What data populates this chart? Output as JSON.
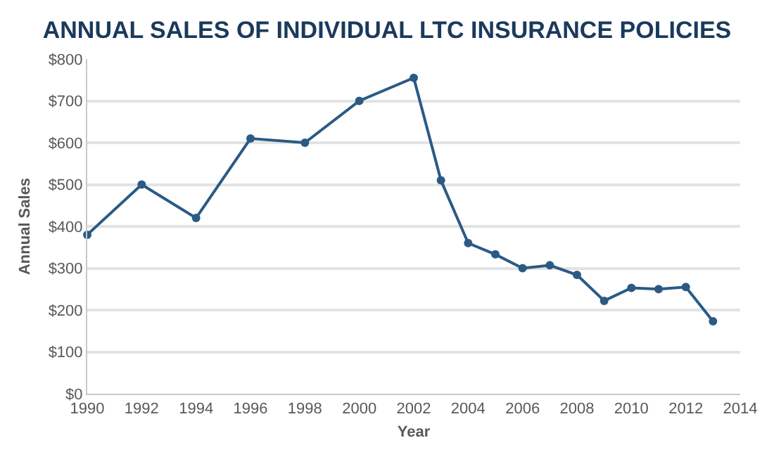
{
  "chart_data": {
    "type": "line",
    "title": "ANNUAL SALES OF INDIVIDUAL LTC INSURANCE POLICIES",
    "xlabel": "Year",
    "ylabel": "Annual Sales",
    "x": [
      1990,
      1992,
      1994,
      1996,
      1998,
      2000,
      2002,
      2003,
      2004,
      2005,
      2006,
      2007,
      2008,
      2009,
      2010,
      2011,
      2012,
      2013
    ],
    "series": [
      {
        "color": "#2b5a85",
        "values": [
          380,
          500,
          420,
          610,
          600,
          700,
          755,
          510,
          360,
          333,
          300,
          307,
          284,
          222,
          253,
          250,
          255,
          173
        ]
      }
    ],
    "xlim": [
      1990,
      2014
    ],
    "xticks": [
      1990,
      1992,
      1994,
      1996,
      1998,
      2000,
      2002,
      2004,
      2006,
      2008,
      2010,
      2012,
      2014
    ],
    "ylim": [
      0,
      800
    ],
    "yticks": [
      {
        "value": 0,
        "label": "$0"
      },
      {
        "value": 100,
        "label": "$100"
      },
      {
        "value": 200,
        "label": "$200"
      },
      {
        "value": 300,
        "label": "$300"
      },
      {
        "value": 400,
        "label": "$400"
      },
      {
        "value": 500,
        "label": "$500"
      },
      {
        "value": 600,
        "label": "$600"
      },
      {
        "value": 700,
        "label": "$700"
      },
      {
        "value": 800,
        "label": "$800"
      }
    ],
    "grid": "y",
    "legend": false,
    "marker": "circle",
    "line_style": "solid"
  }
}
